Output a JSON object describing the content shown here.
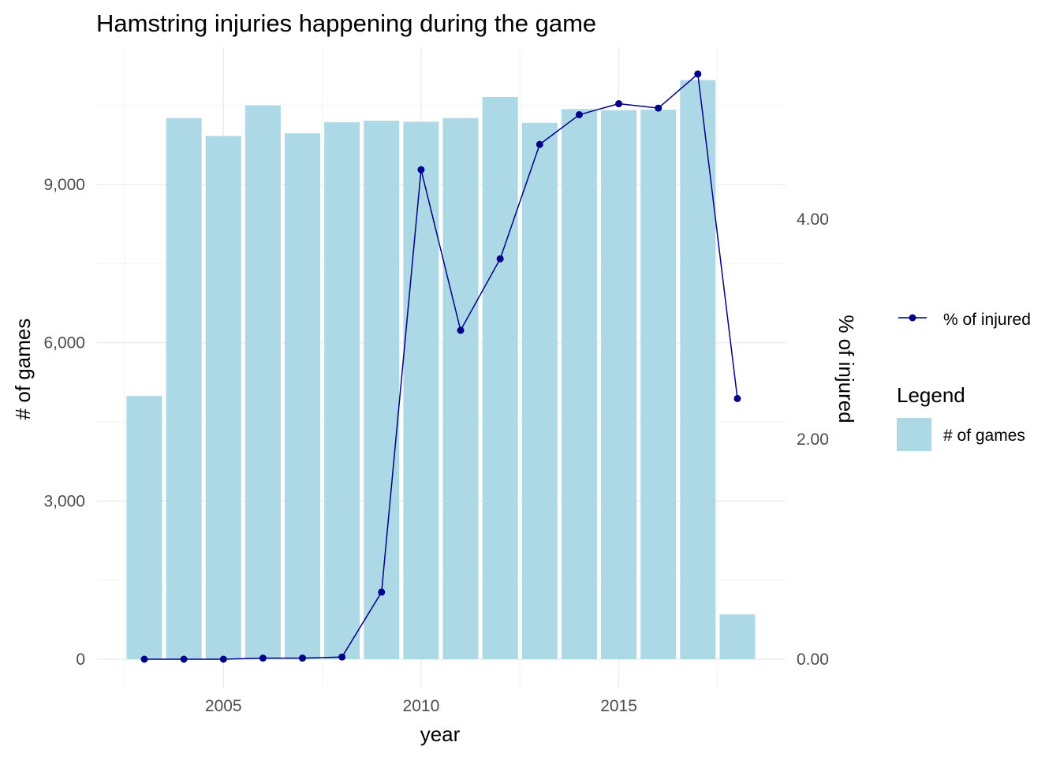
{
  "chart_data": {
    "type": "bar+line",
    "title": "Hamstring injuries happening during the game",
    "xlabel": "year",
    "ylabel_left": "# of games",
    "ylabel_right": "% of injured",
    "x": [
      2003,
      2004,
      2005,
      2006,
      2007,
      2008,
      2009,
      2010,
      2011,
      2012,
      2013,
      2014,
      2015,
      2016,
      2017,
      2018
    ],
    "x_ticks": [
      "2005",
      "2010",
      "2015"
    ],
    "x_tick_values": [
      2005,
      2010,
      2015
    ],
    "xlim": [
      2002.5,
      2018.5
    ],
    "y_left_ticks": [
      "0",
      "3,000",
      "6,000",
      "9,000"
    ],
    "y_left_tick_values": [
      0,
      3000,
      6000,
      9000
    ],
    "y_left_lim": [
      0,
      11000
    ],
    "y_right_ticks": [
      "0.00",
      "2.00",
      "4.00"
    ],
    "y_right_tick_values": [
      0,
      2,
      4
    ],
    "y_right_lim": [
      0,
      5.36
    ],
    "grid": true,
    "series": [
      {
        "name": "# of games",
        "type": "bar",
        "axis": "left",
        "color": "#add8e6",
        "values": [
          4990,
          10260,
          9920,
          10500,
          9970,
          10180,
          10210,
          10190,
          10260,
          10660,
          10170,
          10430,
          10410,
          10420,
          10980,
          850
        ]
      },
      {
        "name": "% of injured",
        "type": "line",
        "axis": "right",
        "color": "#00008b",
        "values": [
          0.0,
          0.0,
          0.0,
          0.01,
          0.01,
          0.02,
          0.61,
          4.45,
          2.99,
          3.64,
          4.68,
          4.95,
          5.05,
          5.01,
          5.32,
          2.37
        ]
      }
    ],
    "legend": {
      "placement": "right",
      "title": "Legend",
      "line_entry": "% of injured",
      "bar_entry": "# of games"
    }
  }
}
